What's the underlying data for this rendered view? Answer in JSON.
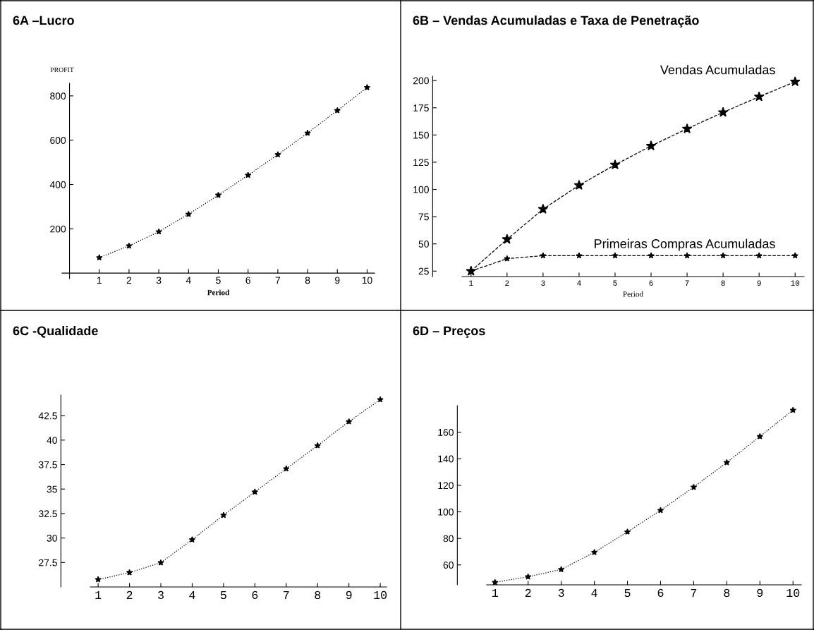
{
  "chart_data": [
    {
      "type": "line",
      "title": "6A –Lucro",
      "xlabel": "Period",
      "ylabel": "PROFIT",
      "x": [
        1,
        2,
        3,
        4,
        5,
        6,
        7,
        8,
        9,
        10
      ],
      "xlim": [
        -0.25,
        10.25
      ],
      "xticks": [
        1,
        2,
        3,
        4,
        5,
        6,
        7,
        8,
        9,
        10
      ],
      "ylim": [
        -25,
        857
      ],
      "yticks": [
        200,
        400,
        600,
        800
      ],
      "marker": "star",
      "line_style": "dotted",
      "series": [
        {
          "color": "#000000",
          "values": [
            70,
            123,
            187,
            266,
            352,
            442,
            535,
            632,
            734,
            838
          ]
        }
      ]
    },
    {
      "type": "line",
      "title": "6B – Vendas Acumuladas e Taxa de Penetração",
      "xlabel": "Period",
      "x": [
        1,
        2,
        3,
        4,
        5,
        6,
        7,
        8,
        9,
        10
      ],
      "xlim": [
        0.75,
        10.25
      ],
      "xticks": [
        1,
        2,
        3,
        4,
        5,
        6,
        7,
        8,
        9,
        10
      ],
      "ylim": [
        20,
        204
      ],
      "yticks": [
        25,
        50,
        75,
        100,
        125,
        150,
        175,
        200
      ],
      "marker": "star",
      "line_style": "dashed",
      "series": [
        {
          "name": "Vendas Acumuladas",
          "color": "#000000",
          "values": [
            25,
            54.2,
            81.9,
            103.8,
            122.6,
            140,
            155.7,
            170.8,
            185.1,
            198.9
          ]
        },
        {
          "name": "Primeiras Compras Acumuladas",
          "color": "#000000",
          "values": [
            25,
            36.4,
            39.2,
            39.2,
            39.2,
            39.2,
            39.2,
            39.2,
            39.2,
            39.2
          ]
        }
      ]
    },
    {
      "type": "line",
      "title": "6C -Qualidade",
      "x": [
        1,
        2,
        3,
        4,
        5,
        6,
        7,
        8,
        9,
        10
      ],
      "xlim": [
        0.75,
        10.2
      ],
      "xticks": [
        1,
        2,
        3,
        4,
        5,
        6,
        7,
        8,
        9,
        10
      ],
      "ylim": [
        25,
        44.6
      ],
      "yticks": [
        27.5,
        30,
        32.5,
        35,
        37.5,
        40,
        42.5
      ],
      "marker": "star",
      "line_style": "dotted",
      "series": [
        {
          "color": "#000000",
          "values": [
            25.76,
            26.47,
            27.48,
            29.83,
            32.33,
            34.71,
            37.08,
            39.44,
            41.89,
            44.14
          ]
        }
      ]
    },
    {
      "type": "line",
      "title": "6D – Preços",
      "x": [
        1,
        2,
        3,
        4,
        5,
        6,
        7,
        8,
        9,
        10
      ],
      "xlim": [
        0.75,
        10.25
      ],
      "xticks": [
        1,
        2,
        3,
        4,
        5,
        6,
        7,
        8,
        9,
        10
      ],
      "ylim": [
        45,
        180
      ],
      "yticks": [
        60,
        80,
        100,
        120,
        140,
        160
      ],
      "marker": "star",
      "line_style": "dotted",
      "series": [
        {
          "color": "#000000",
          "values": [
            46.9,
            51.1,
            56.6,
            69.5,
            84.9,
            101.1,
            118.6,
            137.2,
            156.8,
            176.6
          ]
        }
      ]
    }
  ]
}
